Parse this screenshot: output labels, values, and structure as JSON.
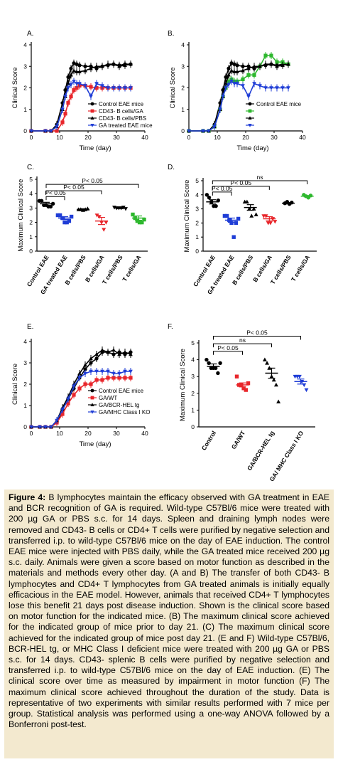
{
  "chart_data": [
    {
      "id": "A",
      "type": "line",
      "panel_label": "A.",
      "xlabel": "Time (day)",
      "ylabel": "Clinical Score",
      "xlim": [
        0,
        40
      ],
      "ylim": [
        0,
        4
      ],
      "xticks": [
        "0",
        "10",
        "20",
        "30",
        "40"
      ],
      "yticks": [
        "0",
        "1",
        "2",
        "3",
        "4"
      ],
      "x": [
        0,
        5,
        7,
        9,
        11,
        12,
        13,
        14,
        15,
        16,
        17,
        19,
        21,
        23,
        25,
        27,
        29,
        31,
        33,
        35
      ],
      "series": [
        {
          "name": "Control EAE mice",
          "color": "#000000",
          "marker": "circle",
          "values": [
            0,
            0,
            0,
            0.3,
            1.3,
            1.9,
            2.5,
            2.9,
            3.15,
            3.1,
            3.05,
            3.0,
            3.0,
            2.9,
            3.0,
            3.05,
            3.1,
            3.05,
            3.1,
            3.1
          ]
        },
        {
          "name": "CD43- B cells/GA",
          "color": "#e8262b",
          "marker": "square",
          "values": [
            0,
            0,
            0,
            0,
            0.4,
            0.8,
            1.3,
            1.6,
            1.9,
            2.0,
            2.1,
            2.1,
            2.05,
            2.0,
            2.0,
            2.0,
            2.0,
            2.0,
            2.0,
            2.0
          ]
        },
        {
          "name": "CD43- B cells/PBS",
          "color": "#000000",
          "marker": "triangle",
          "values": [
            0,
            0,
            0,
            0.2,
            1.0,
            1.6,
            2.2,
            2.6,
            2.8,
            2.75,
            2.75,
            2.8,
            2.9,
            3.0,
            3.0,
            3.1,
            3.1,
            3.0,
            3.05,
            3.1
          ]
        },
        {
          "name": "GA treated EAE mice",
          "color": "#1f3dd6",
          "marker": "triangle-down",
          "values": [
            0,
            0,
            0,
            0.2,
            1.0,
            1.6,
            2.0,
            2.15,
            2.3,
            2.2,
            2.2,
            2.1,
            1.6,
            2.2,
            2.1,
            2.0,
            2.0,
            2.0,
            2.0,
            2.0
          ]
        }
      ],
      "legend": "right"
    },
    {
      "id": "B",
      "type": "line",
      "panel_label": "B.",
      "xlabel": "Time (day)",
      "ylabel": "Clinical Score",
      "xlim": [
        0,
        40
      ],
      "ylim": [
        0,
        4
      ],
      "xticks": [
        "0",
        "10",
        "20",
        "30",
        "40"
      ],
      "yticks": [
        "0",
        "1",
        "2",
        "3",
        "4"
      ],
      "x": [
        0,
        5,
        7,
        9,
        11,
        12,
        13,
        14,
        15,
        16,
        17,
        19,
        21,
        23,
        25,
        27,
        29,
        31,
        33,
        35
      ],
      "series": [
        {
          "name": "Control EAE mice",
          "color": "#000000",
          "marker": "circle",
          "values": [
            0,
            0,
            0,
            0.3,
            1.3,
            1.9,
            2.5,
            2.9,
            3.15,
            3.1,
            3.05,
            3.0,
            3.0,
            2.9,
            3.0,
            3.05,
            3.1,
            3.05,
            3.1,
            3.1
          ]
        },
        {
          "name": "",
          "color": "#2eb82e",
          "marker": "square",
          "values": [
            0,
            0,
            0,
            0.2,
            1.0,
            1.6,
            2.0,
            2.3,
            2.4,
            2.3,
            2.3,
            2.4,
            2.6,
            2.6,
            3.0,
            3.5,
            3.5,
            3.2,
            3.2,
            3.1
          ]
        },
        {
          "name": "",
          "color": "#000000",
          "marker": "triangle",
          "values": [
            0,
            0,
            0,
            0.2,
            1.0,
            1.6,
            2.2,
            2.6,
            2.8,
            2.75,
            2.75,
            2.8,
            2.9,
            3.0,
            3.0,
            3.1,
            3.1,
            3.0,
            3.05,
            3.1
          ]
        },
        {
          "name": "",
          "color": "#1f3dd6",
          "marker": "triangle-down",
          "values": [
            0,
            0,
            0,
            0.2,
            1.0,
            1.6,
            2.0,
            2.15,
            2.3,
            2.2,
            2.2,
            2.1,
            1.6,
            2.2,
            2.1,
            2.0,
            2.0,
            2.0,
            2.0,
            2.0
          ]
        }
      ],
      "legend_markers": [
        {
          "color": "#2eb82e",
          "marker": "square"
        },
        {
          "color": "#000000",
          "marker": "triangle"
        },
        {
          "color": "#1f3dd6",
          "marker": "triangle-down"
        }
      ],
      "legend": "right"
    },
    {
      "id": "C",
      "type": "scatter",
      "panel_label": "C.",
      "ylabel": "Maximum Clinical Score",
      "ylim": [
        0,
        5
      ],
      "yticks": [
        "0",
        "1",
        "2",
        "3",
        "4",
        "5"
      ],
      "categories": [
        "Control EAE",
        "GA treated EAE",
        "B cells/PBS",
        "B cells/GA",
        "T cells/PBS",
        "T cells/GA"
      ],
      "groups": [
        {
          "color": "#000000",
          "marker": "circle",
          "mean": 3.3,
          "sem": 0.1,
          "points": [
            3.5,
            3.5,
            3.2,
            3.2,
            3.1,
            3.1,
            3.3
          ]
        },
        {
          "color": "#1f3dd6",
          "marker": "square",
          "mean": 2.3,
          "sem": 0.1,
          "points": [
            2.5,
            2.5,
            2.3,
            2.0,
            2.0,
            2.1,
            2.4
          ]
        },
        {
          "color": "#000000",
          "marker": "triangle",
          "mean": 2.9,
          "sem": 0.05,
          "points": [
            2.9,
            2.9,
            2.85,
            2.9,
            2.95
          ]
        },
        {
          "color": "#e8262b",
          "marker": "triangle-down",
          "mean": 2.1,
          "sem": 0.25,
          "points": [
            2.5,
            2.4,
            2.0,
            1.5,
            2.0
          ]
        },
        {
          "color": "#000000",
          "marker": "triangle-down",
          "mean": 3.0,
          "sem": 0.05,
          "points": [
            3.05,
            3.0,
            3.0,
            3.0,
            3.05,
            2.95
          ]
        },
        {
          "color": "#2eb82e",
          "marker": "square",
          "mean": 2.3,
          "sem": 0.15,
          "points": [
            2.55,
            2.3,
            2.1,
            2.0,
            2.0,
            2.2
          ]
        }
      ],
      "brackets": [
        {
          "from": 0,
          "to": 1,
          "level": 3.8,
          "label": "P< 0.05"
        },
        {
          "from": 0,
          "to": 3,
          "level": 4.2,
          "label": "P< 0.05"
        },
        {
          "from": 0,
          "to": 5,
          "level": 4.65,
          "label": "P< 0.05"
        }
      ]
    },
    {
      "id": "D",
      "type": "scatter",
      "panel_label": "D.",
      "ylabel": "Maximum Clinical Score",
      "ylim": [
        0,
        5
      ],
      "yticks": [
        "0",
        "1",
        "2",
        "3",
        "4",
        "5"
      ],
      "categories": [
        "Control EAE",
        "GA treated EAE",
        "B cells/PBS",
        "B cells/GA",
        "T cells/PBS",
        "T cells/GA"
      ],
      "groups": [
        {
          "color": "#000000",
          "marker": "circle",
          "mean": 3.5,
          "sem": 0.15,
          "points": [
            4.0,
            3.8,
            3.5,
            3.2,
            3.2,
            3.6
          ]
        },
        {
          "color": "#1f3dd6",
          "marker": "square",
          "mean": 2.2,
          "sem": 0.15,
          "points": [
            2.5,
            2.5,
            2.2,
            2.0,
            1.0,
            2.0,
            2.3
          ]
        },
        {
          "color": "#000000",
          "marker": "triangle",
          "mean": 3.1,
          "sem": 0.2,
          "points": [
            3.5,
            3.5,
            3.0,
            2.5,
            3.0,
            2.6
          ]
        },
        {
          "color": "#e8262b",
          "marker": "triangle-down",
          "mean": 2.3,
          "sem": 0.15,
          "points": [
            2.5,
            2.5,
            2.0,
            2.0,
            2.3,
            2.1
          ]
        },
        {
          "color": "#000000",
          "marker": "circle",
          "mean": 3.4,
          "sem": 0.05,
          "points": [
            3.4,
            3.5,
            3.35,
            3.45
          ]
        },
        {
          "color": "#2eb82e",
          "marker": "circle",
          "mean": 3.9,
          "sem": 0.05,
          "points": [
            4.0,
            3.9,
            3.8,
            3.95
          ]
        }
      ],
      "brackets": [
        {
          "from": 0,
          "to": 1,
          "level": 4.2,
          "label": "P< 0.05"
        },
        {
          "from": 0,
          "to": 3,
          "level": 4.6,
          "label": "P< 0.05"
        },
        {
          "from": 0,
          "to": 5,
          "level": 5.0,
          "label": "ns"
        }
      ]
    },
    {
      "id": "E",
      "type": "line",
      "panel_label": "E.",
      "xlabel": "Time (day)",
      "ylabel": "Clinical Score",
      "xlim": [
        0,
        40
      ],
      "ylim": [
        0,
        4
      ],
      "xticks": [
        "0",
        "10",
        "20",
        "30",
        "40"
      ],
      "yticks": [
        "0",
        "1",
        "2",
        "3",
        "4"
      ],
      "x": [
        0,
        3,
        5,
        7,
        9,
        11,
        13,
        15,
        17,
        19,
        21,
        23,
        25,
        27,
        29,
        31,
        33,
        35
      ],
      "series": [
        {
          "name": "Control EAE mice",
          "color": "#000000",
          "marker": "circle",
          "values": [
            0,
            0,
            0,
            0,
            0.2,
            0.8,
            1.3,
            1.8,
            2.3,
            2.7,
            3.0,
            3.2,
            3.5,
            3.5,
            3.4,
            3.5,
            3.4,
            3.5
          ]
        },
        {
          "name": "GA/WT",
          "color": "#e8262b",
          "marker": "square",
          "values": [
            0,
            0,
            0,
            0,
            0.2,
            0.6,
            1.1,
            1.5,
            1.8,
            2.0,
            2.0,
            2.2,
            2.2,
            2.3,
            2.3,
            2.3,
            2.3,
            2.3
          ]
        },
        {
          "name": "GA/BCR-HEL tg",
          "color": "#000000",
          "marker": "triangle",
          "values": [
            0,
            0,
            0,
            0,
            0.3,
            0.9,
            1.4,
            2.0,
            2.5,
            2.9,
            3.2,
            3.4,
            3.6,
            3.5,
            3.6,
            3.4,
            3.5,
            3.4
          ]
        },
        {
          "name": "GA/MHC Class I KO",
          "color": "#1f3dd6",
          "marker": "triangle-down",
          "values": [
            0,
            0,
            0,
            0,
            0.3,
            0.8,
            1.3,
            1.9,
            2.3,
            2.5,
            2.6,
            2.6,
            2.6,
            2.6,
            2.5,
            2.5,
            2.6,
            2.6
          ]
        }
      ],
      "legend": "right"
    },
    {
      "id": "F",
      "type": "scatter",
      "panel_label": "F.",
      "ylabel": "Maximum Clinical Score",
      "ylim": [
        0,
        5
      ],
      "yticks": [
        "0",
        "1",
        "2",
        "3",
        "4",
        "5"
      ],
      "categories": [
        "Control",
        "GA/WT",
        "GA/BCR-HEL tg",
        "GA/ MHC Class I KO"
      ],
      "groups": [
        {
          "color": "#000000",
          "marker": "circle",
          "mean": 3.6,
          "sem": 0.15,
          "points": [
            4.0,
            3.8,
            3.5,
            3.5,
            3.5,
            3.2,
            3.8
          ]
        },
        {
          "color": "#e8262b",
          "marker": "square",
          "mean": 2.5,
          "sem": 0.12,
          "points": [
            3.0,
            2.5,
            2.5,
            2.3,
            2.2,
            2.6
          ]
        },
        {
          "color": "#000000",
          "marker": "triangle",
          "mean": 3.2,
          "sem": 0.3,
          "points": [
            4.0,
            3.8,
            3.5,
            3.0,
            2.8,
            2.5,
            1.5
          ]
        },
        {
          "color": "#1f3dd6",
          "marker": "triangle-down",
          "mean": 2.7,
          "sem": 0.15,
          "points": [
            3.0,
            3.0,
            3.0,
            2.7,
            2.5,
            2.2
          ]
        }
      ],
      "brackets": [
        {
          "from": 0,
          "to": 1,
          "level": 4.5,
          "label": "P< 0.05"
        },
        {
          "from": 0,
          "to": 2,
          "level": 4.95,
          "label": "ns"
        },
        {
          "from": 0,
          "to": 3,
          "level": 5.4,
          "label": "P< 0.05"
        }
      ]
    }
  ],
  "caption": {
    "label": "Figure 4:",
    "text": " B lymphocytes maintain the efficacy observed with GA treatment in EAE and BCR recognition of GA is required. Wild-type C57Bl/6 mice were treated with 200 µg GA or PBS s.c. for 14 days. Spleen and draining lymph nodes were removed and CD43- B cells or CD4+ T cells were purified by negative selection and transferred i.p. to wild-type C57Bl/6 mice on the day of EAE induction. The control EAE mice were injected with PBS daily, while the GA treated mice received 200 µg s.c. daily. Animals were given a score based on motor function as described in the materials and methods every other day. (A and B) The transfer of both CD43- B lymphocytes and CD4+ T lymphocytes from GA treated animals is initially equally efficacious in the EAE model. However, animals that received CD4+ T lymphocytes lose this benefit 21 days post disease induction. Shown is the clinical score based on motor function for the indicated mice. (B) The maximum clinical score achieved for the indicated group of mice prior to day 21. (C) The maximum clinical score achieved for the indicated group of mice post day 21. (E and F) Wild-type C57Bl/6, BCR-HEL tg, or MHC Class I deficient mice were treated with 200 µg GA or PBS s.c. for 14 days. CD43- splenic B cells were purified by negative selection and transferred i.p. to wild-type C57Bl/6 mice on the day of EAE induction. (E) The clinical score over time as measured by impairment in motor function (F) The maximum clinical score achieved throughout the duration of the study. Data is representative of two experiments with similar results performed with 7 mice per group. Statistical analysis was performed using a one-way ANOVA followed by a Bonferroni post-test."
  }
}
